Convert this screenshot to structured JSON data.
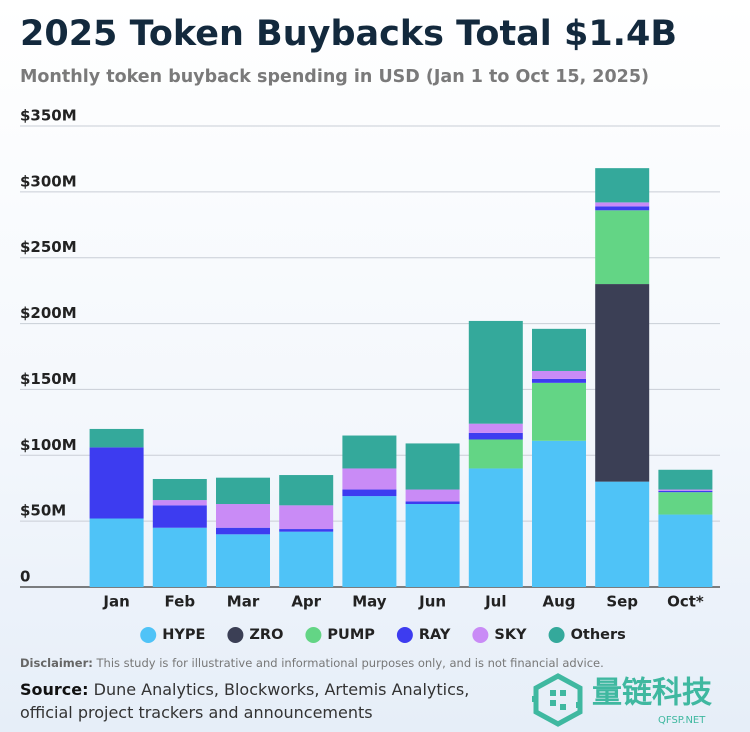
{
  "chart_data": {
    "type": "stacked_bar",
    "title": "2025 Token Buybacks Total $1.4B",
    "subtitle": "Monthly token buyback spending in USD (Jan 1 to Oct 15, 2025)",
    "categories": [
      "Jan",
      "Feb",
      "Mar",
      "Apr",
      "May",
      "Jun",
      "Jul",
      "Aug",
      "Sep",
      "Oct*"
    ],
    "series": [
      {
        "name": "HYPE",
        "color": "#4fc3f7",
        "values": [
          52,
          45,
          40,
          42,
          69,
          63,
          90,
          111,
          80,
          55
        ]
      },
      {
        "name": "ZRO",
        "color": "#3b3f55",
        "values": [
          0,
          0,
          0,
          0,
          0,
          0,
          0,
          0,
          150,
          0
        ]
      },
      {
        "name": "PUMP",
        "color": "#63d585",
        "values": [
          0,
          0,
          0,
          0,
          0,
          0,
          22,
          44,
          56,
          17
        ]
      },
      {
        "name": "RAY",
        "color": "#3d3cf0",
        "values": [
          54,
          17,
          5,
          2,
          5,
          2,
          5,
          3,
          3,
          1
        ]
      },
      {
        "name": "SKY",
        "color": "#c98bf6",
        "values": [
          0,
          4,
          18,
          18,
          16,
          9,
          7,
          6,
          3,
          1
        ]
      },
      {
        "name": "Others",
        "color": "#34a99b",
        "values": [
          14,
          16,
          20,
          23,
          25,
          35,
          78,
          32,
          26,
          15
        ]
      }
    ],
    "ylim": [
      0,
      350
    ],
    "yticks": [
      0,
      {
        "value": 50,
        "label": "$50M"
      },
      {
        "value": 100,
        "label": "$100M"
      },
      {
        "value": 150,
        "label": "$150M"
      },
      {
        "value": 200,
        "label": "$200M"
      },
      {
        "value": 250,
        "label": "$250M"
      },
      {
        "value": 300,
        "label": "$300M"
      },
      {
        "value": 350,
        "label": "$350M"
      }
    ],
    "grid": true,
    "legend": "bottom"
  },
  "footer": {
    "disclaimer": {
      "label": "Disclaimer:",
      "text": "This study is for illustrative and informational purposes only, and is not financial advice."
    },
    "source": {
      "label": "Source:",
      "lines": [
        "Dune Analytics, Blockworks, Artemis Analytics,",
        "official project trackers and announcements"
      ]
    },
    "watermark": {
      "name": "量链科技",
      "url": "QFSP.NET"
    }
  }
}
